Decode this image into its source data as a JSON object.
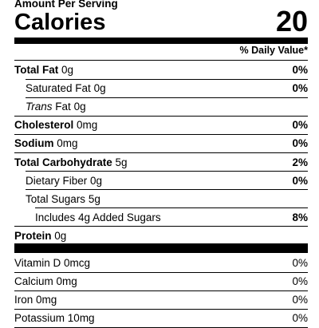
{
  "header": {
    "amount_per_serving": "Amount Per Serving",
    "calories_label": "Calories",
    "calories_value": "20",
    "daily_value_header": "% Daily Value*"
  },
  "rows": [
    {
      "name": "Total Fat",
      "amount": "0g",
      "dv": "0%"
    },
    {
      "name": "Saturated Fat",
      "amount": "0g",
      "dv": "0%"
    },
    {
      "name_italic": "Trans",
      "name": "Fat",
      "amount": "0g"
    },
    {
      "name": "Cholesterol",
      "amount": "0mg",
      "dv": "0%"
    },
    {
      "name": "Sodium",
      "amount": "0mg",
      "dv": "0%"
    },
    {
      "name": "Total Carbohydrate",
      "amount": "5g",
      "dv": "2%"
    },
    {
      "name": "Dietary Fiber",
      "amount": "0g",
      "dv": "0%"
    },
    {
      "name": "Total Sugars",
      "amount": "5g"
    },
    {
      "name": "Includes 4g Added Sugars",
      "dv": "8%"
    },
    {
      "name": "Protein",
      "amount": "0g"
    }
  ],
  "vitamins": [
    {
      "name": "Vitamin D",
      "amount": "0mcg",
      "dv": "0%"
    },
    {
      "name": "Calcium",
      "amount": "0mg",
      "dv": "0%"
    },
    {
      "name": "Iron",
      "amount": "0mg",
      "dv": "0%"
    },
    {
      "name": "Potassium",
      "amount": "10mg",
      "dv": "0%"
    }
  ]
}
